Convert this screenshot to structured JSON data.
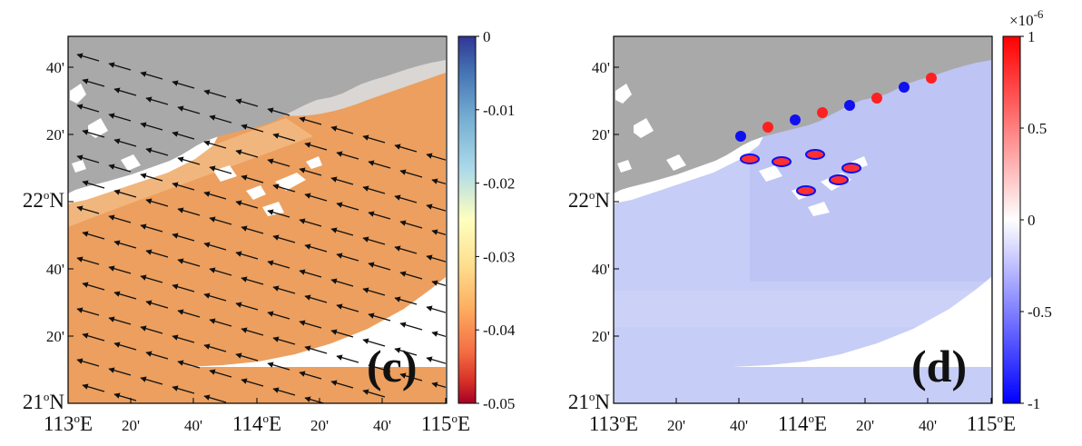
{
  "colors": {
    "land": "#a9a9a9",
    "frame": "#000000",
    "panel_c_ocean": "#ec9f5e",
    "panel_d_ocean": "#c6cdf6",
    "arrow": "#111111"
  },
  "chart_data": [
    {
      "type": "heatmap",
      "panel_label": "(c)",
      "map_layer": "vector-field",
      "x_ticks": [
        "113oE",
        "20'",
        "40'",
        "114oE",
        "20'",
        "40'",
        "115oE"
      ],
      "y_ticks": [
        "21oN",
        "20'",
        "40'",
        "22oN",
        "20'",
        "40'"
      ],
      "x_range": [
        113.0,
        115.0
      ],
      "y_range": [
        21.0,
        22.8
      ],
      "colorbar": {
        "colormap": "RdYlBu",
        "range": [
          -0.05,
          0
        ],
        "ticks": [
          "0",
          "-0.01",
          "-0.02",
          "-0.03",
          "-0.04",
          "-0.05"
        ],
        "values": [
          0,
          -0.01,
          -0.02,
          -0.03,
          -0.04,
          -0.05
        ],
        "multiplier": ""
      },
      "field_typical_value": -0.037,
      "vectors_direction": "toward upper-left (north-west)"
    },
    {
      "type": "heatmap",
      "panel_label": "(d)",
      "map_layer": "scalar-field",
      "x_ticks": [
        "113oE",
        "20'",
        "40'",
        "114oE",
        "20'",
        "40'",
        "115oE"
      ],
      "y_ticks": [
        "21oN",
        "20'",
        "40'",
        "22oN",
        "20'",
        "40'"
      ],
      "x_range": [
        113.0,
        115.0
      ],
      "y_range": [
        21.0,
        22.8
      ],
      "colorbar": {
        "colormap": "blue-white-red",
        "range": [
          -1,
          1
        ],
        "ticks": [
          "1",
          "0.5",
          "0",
          "-0.5",
          "-1"
        ],
        "values": [
          1,
          0.5,
          0,
          -0.5,
          -1
        ],
        "multiplier": "×10-6"
      },
      "field_typical_value": -0.25
    }
  ]
}
